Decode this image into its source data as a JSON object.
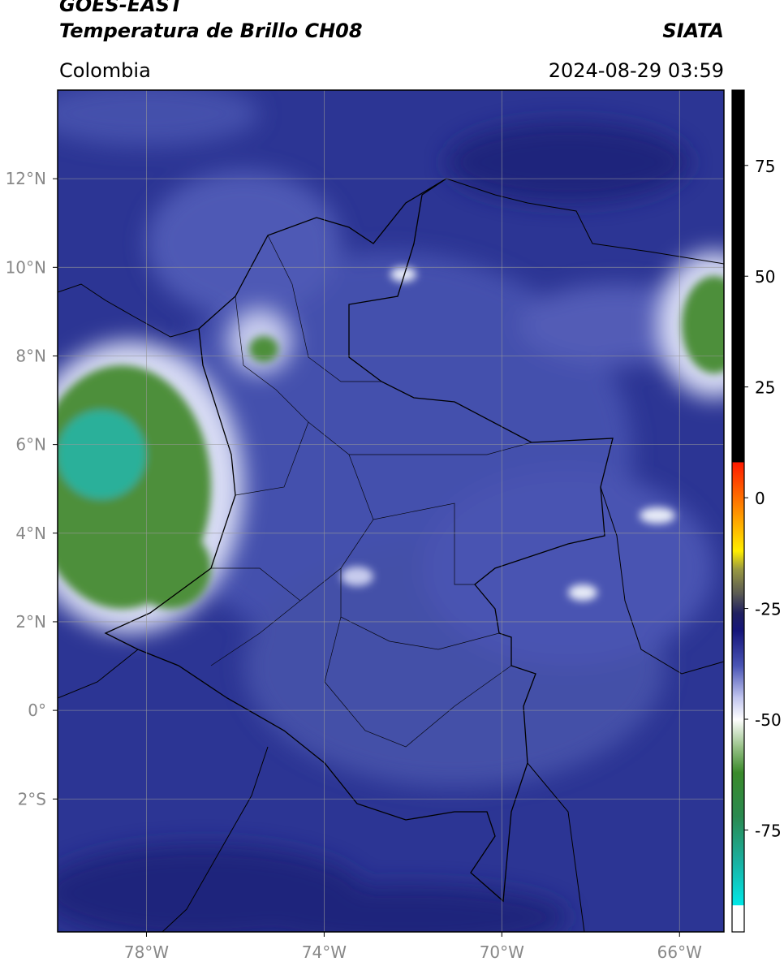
{
  "chart_data": {
    "type": "map",
    "title": "GOES-EAST",
    "subtitle": "Temperatura de Brillo CH08",
    "region": "Colombia",
    "source": "SIATA",
    "datetime": "2024-08-29 03:59",
    "xlim": [
      -80,
      -65
    ],
    "ylim": [
      -5,
      14
    ],
    "xticks": [
      {
        "value": -78,
        "label": "78°W"
      },
      {
        "value": -74,
        "label": "74°W"
      },
      {
        "value": -70,
        "label": "70°W"
      },
      {
        "value": -66,
        "label": "66°W"
      }
    ],
    "yticks": [
      {
        "value": 12,
        "label": "12°N"
      },
      {
        "value": 10,
        "label": "10°N"
      },
      {
        "value": 8,
        "label": "8°N"
      },
      {
        "value": 6,
        "label": "6°N"
      },
      {
        "value": 4,
        "label": "4°N"
      },
      {
        "value": 2,
        "label": "2°N"
      },
      {
        "value": 0,
        "label": "0°"
      },
      {
        "value": -2,
        "label": "2°S"
      }
    ],
    "grid": true,
    "colorbar": {
      "clim": [
        -98,
        92
      ],
      "ticks": [
        75,
        50,
        25,
        0,
        -25,
        -50,
        -75
      ],
      "colormap": [
        {
          "value": 92,
          "color": "#000000"
        },
        {
          "value": 8,
          "color": "#000000"
        },
        {
          "value": 8,
          "color": "#ff1a00"
        },
        {
          "value": -4,
          "color": "#ff9900"
        },
        {
          "value": -12,
          "color": "#ffee00"
        },
        {
          "value": -16,
          "color": "#9a9a40"
        },
        {
          "value": -22,
          "color": "#555555"
        },
        {
          "value": -26,
          "color": "#202060"
        },
        {
          "value": -30,
          "color": "#15157a"
        },
        {
          "value": -38,
          "color": "#4a55b5"
        },
        {
          "value": -45,
          "color": "#c0c4ee"
        },
        {
          "value": -50,
          "color": "#ffffff"
        },
        {
          "value": -56,
          "color": "#9cc48c"
        },
        {
          "value": -62,
          "color": "#3a8a2a"
        },
        {
          "value": -72,
          "color": "#2a8a50"
        },
        {
          "value": -82,
          "color": "#1ab0a0"
        },
        {
          "value": -92,
          "color": "#00e8e8"
        },
        {
          "value": -92,
          "color": "#ffffff"
        },
        {
          "value": -98,
          "color": "#ffffff"
        }
      ]
    }
  }
}
